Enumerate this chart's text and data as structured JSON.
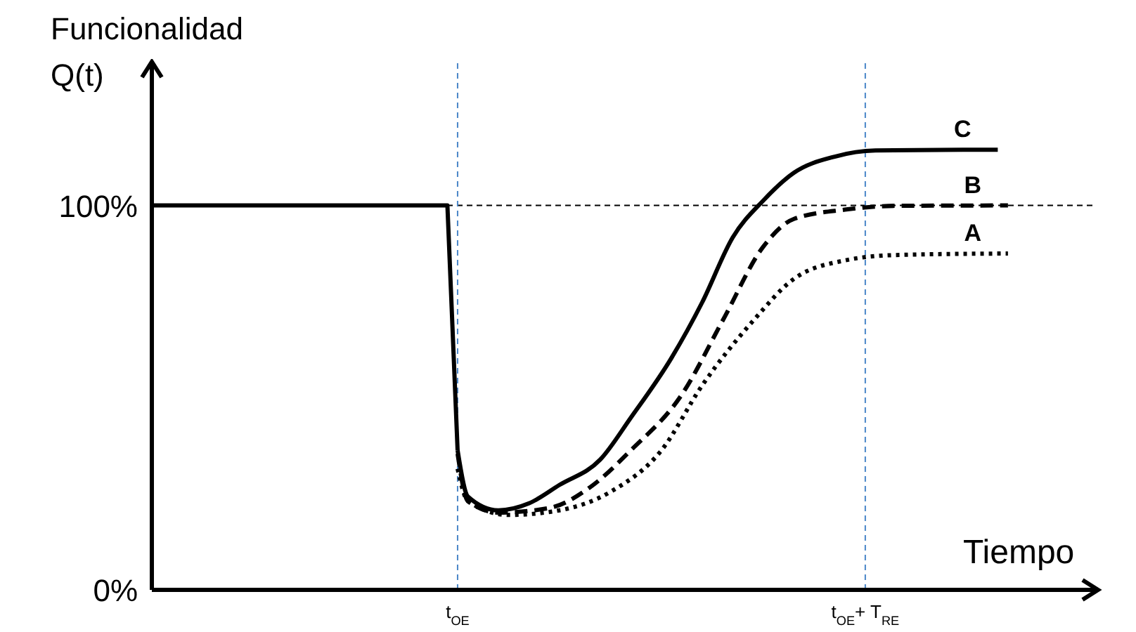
{
  "chart_data": {
    "type": "line",
    "xlabel": "Tiempo",
    "ylabel": "Funcionalidad\nQ(t)",
    "categories": [
      null,
      null,
      null,
      null,
      null,
      null,
      null,
      null,
      null,
      null,
      null,
      null,
      null,
      null,
      null,
      null,
      null,
      null,
      null,
      null,
      null,
      null,
      null,
      null,
      null,
      null,
      null,
      null,
      null,
      null,
      "t$_{OE}$",
      null,
      null,
      null,
      null,
      null,
      null,
      null,
      null,
      null,
      null,
      null,
      null,
      null,
      null,
      null,
      null,
      null,
      null,
      null,
      null,
      null,
      null,
      null,
      null,
      null,
      null,
      null,
      null,
      null,
      null,
      null,
      null,
      null,
      null,
      null,
      null,
      null,
      null,
      null,
      "t$_{OE}$+ T$_{RE}$",
      null,
      null,
      null,
      null,
      null,
      null,
      null,
      null,
      null,
      null,
      null,
      null,
      null,
      null,
      null,
      null,
      null,
      null,
      null,
      null,
      null,
      null
    ],
    "ylim": [
      0,
      137
    ],
    "yticks": [
      {
        "value": 0,
        "label": "0%"
      },
      {
        "value": 100,
        "label": "100%"
      }
    ],
    "series": [
      {
        "color": "#000000",
        "line_style": "solid",
        "values": [
          100,
          null,
          null,
          null,
          null,
          null,
          null,
          null,
          null,
          null,
          null,
          null,
          null,
          null,
          null,
          null,
          null,
          null,
          null,
          null,
          null,
          null,
          null,
          null,
          null,
          null,
          null,
          null,
          null,
          100,
          36.3,
          null,
          null,
          null,
          null,
          null,
          null,
          null,
          null,
          null,
          null,
          null,
          null,
          null,
          null,
          null,
          null,
          null,
          null,
          null,
          null,
          null,
          null,
          null,
          null,
          null,
          null,
          null,
          null,
          null,
          null,
          null,
          null,
          null,
          null,
          null,
          null,
          null,
          null,
          null,
          null,
          null,
          null,
          null,
          null,
          null,
          null,
          null,
          null,
          null,
          null,
          null,
          null,
          null,
          null,
          null,
          null,
          null,
          null,
          null,
          null,
          null,
          null
        ]
      },
      {
        "name": "C",
        "color": "#000000",
        "line_style": "solid",
        "values": [
          null,
          null,
          null,
          null,
          null,
          null,
          null,
          null,
          null,
          null,
          null,
          null,
          null,
          null,
          null,
          null,
          null,
          null,
          null,
          null,
          null,
          null,
          null,
          null,
          null,
          null,
          null,
          null,
          null,
          null,
          36.3,
          24.3,
          null,
          null,
          20.7,
          null,
          null,
          22.5,
          null,
          null,
          27.3,
          null,
          null,
          null,
          33.9,
          null,
          null,
          44.8,
          null,
          null,
          null,
          60.4,
          null,
          null,
          74.8,
          null,
          null,
          91.7,
          null,
          null,
          101.3,
          null,
          null,
          108.5,
          null,
          null,
          null,
          112.7,
          null,
          null,
          null,
          114.3,
          null,
          null,
          null,
          null,
          null,
          null,
          null,
          null,
          null,
          null,
          null,
          114.5,
          null,
          null,
          null,
          null,
          null,
          null,
          null,
          null,
          null
        ]
      },
      {
        "name": "B",
        "color": "#000000",
        "line_style": "dashed",
        "values": [
          null,
          null,
          null,
          null,
          null,
          null,
          null,
          null,
          null,
          null,
          null,
          null,
          null,
          null,
          null,
          null,
          null,
          null,
          null,
          null,
          null,
          null,
          null,
          null,
          null,
          null,
          null,
          null,
          null,
          null,
          35.4,
          23.1,
          null,
          null,
          20.1,
          null,
          null,
          null,
          null,
          21.3,
          null,
          null,
          null,
          26.7,
          null,
          null,
          null,
          36.3,
          null,
          null,
          null,
          null,
          50.8,
          null,
          null,
          null,
          70.0,
          null,
          null,
          null,
          89.3,
          null,
          null,
          96.5,
          null,
          null,
          null,
          null,
          98.9,
          null,
          null,
          null,
          null,
          99.9,
          null,
          null,
          null,
          null,
          null,
          null,
          null,
          null,
          null,
          null,
          100,
          null,
          null,
          null,
          null,
          null,
          null,
          null,
          null
        ]
      },
      {
        "name": "A",
        "color": "#000000",
        "line_style": "dotted",
        "values": [
          null,
          null,
          null,
          null,
          null,
          null,
          null,
          null,
          null,
          null,
          null,
          null,
          null,
          null,
          null,
          null,
          null,
          null,
          null,
          null,
          null,
          null,
          null,
          null,
          null,
          null,
          null,
          null,
          null,
          null,
          31.5,
          23.1,
          null,
          null,
          null,
          19.5,
          null,
          null,
          null,
          null,
          20.7,
          null,
          null,
          null,
          null,
          25.5,
          null,
          null,
          null,
          null,
          36.3,
          null,
          null,
          null,
          53.2,
          null,
          null,
          null,
          null,
          70.0,
          null,
          null,
          null,
          80.9,
          null,
          null,
          null,
          null,
          85.7,
          null,
          null,
          null,
          null,
          87.1,
          null,
          null,
          null,
          null,
          null,
          null,
          null,
          null,
          null,
          null,
          87.5,
          null,
          null,
          null,
          null,
          null,
          null,
          null,
          null
        ]
      }
    ],
    "ref_lines": [
      {
        "axis": "y",
        "value": 100,
        "color": "#000000",
        "line_style": "dashed"
      },
      {
        "axis": "x",
        "value": "t$_{OE}$",
        "color": "#4a86c8",
        "line_style": "dashed"
      },
      {
        "axis": "x",
        "value": "t$_{OE}$+ T$_{RE}$",
        "color": "#4a86c8",
        "line_style": "dashed"
      }
    ]
  }
}
